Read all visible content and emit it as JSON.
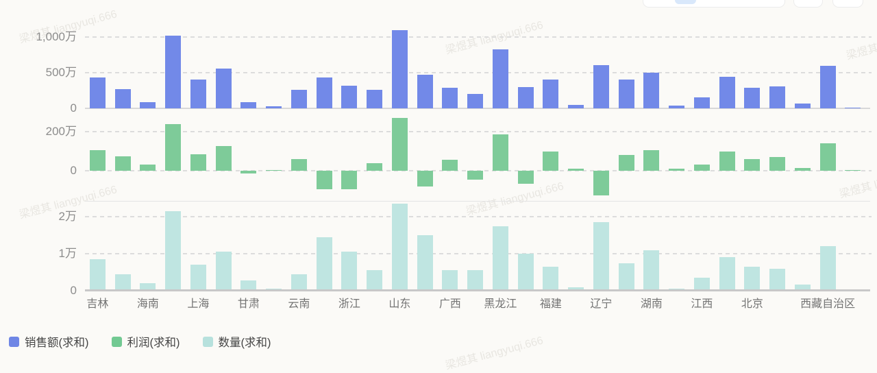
{
  "page": {
    "background": "#fbfaf7"
  },
  "colors": {
    "sales_bar": "#7289e8",
    "profit_bar": "#7ecb99",
    "qty_bar": "#bfe5e1",
    "gridline": "#dcdcdc",
    "y_tick_text": "#8c8c8c",
    "x_label_text": "#737373",
    "legend_text": "#454545",
    "top_axis_line": "#d8d8d8",
    "panel_separator": "#e4e4e4",
    "bottom_axis_line": "#c8c8c8",
    "toolbar_border": "#ececec",
    "toolbar_active_pill": "#d9e8fb"
  },
  "watermark": {
    "text": "梁煜其 liangyuqi.666"
  },
  "legend": {
    "items": [
      {
        "label": "销售额(求和)",
        "color": "#6f86e5"
      },
      {
        "label": "利润(求和)",
        "color": "#72c992"
      },
      {
        "label": "数量(求和)",
        "color": "#b7e1dd"
      }
    ]
  },
  "chart_data": {
    "type": "bar",
    "bar_count": 31,
    "note_layout": "three stacked panels sharing one category axis; axis shows a label under every second bar",
    "x_labels": [
      {
        "label": "吉林",
        "bar": 0
      },
      {
        "label": "海南",
        "bar": 2
      },
      {
        "label": "上海",
        "bar": 4
      },
      {
        "label": "甘肃",
        "bar": 6
      },
      {
        "label": "云南",
        "bar": 8
      },
      {
        "label": "浙江",
        "bar": 10
      },
      {
        "label": "山东",
        "bar": 12
      },
      {
        "label": "广西",
        "bar": 14
      },
      {
        "label": "黑龙江",
        "bar": 16
      },
      {
        "label": "福建",
        "bar": 18
      },
      {
        "label": "辽宁",
        "bar": 20
      },
      {
        "label": "湖南",
        "bar": 22
      },
      {
        "label": "江西",
        "bar": 24
      },
      {
        "label": "北京",
        "bar": 26
      },
      {
        "label": "西藏自治区",
        "bar": 29
      }
    ],
    "panels": [
      {
        "name": "sales",
        "legend": "销售额(求和)",
        "unit": "万",
        "color": "#7289e8",
        "y_ticks": [
          {
            "label": "1,000万",
            "value": 1000
          },
          {
            "label": "500万",
            "value": 500
          },
          {
            "label": "0",
            "value": 0
          }
        ],
        "values": [
          430,
          270,
          90,
          1020,
          400,
          555,
          90,
          30,
          260,
          430,
          320,
          260,
          1100,
          470,
          290,
          200,
          830,
          300,
          400,
          50,
          610,
          400,
          500,
          40,
          150,
          440,
          290,
          310,
          70,
          600,
          10
        ]
      },
      {
        "name": "profit",
        "legend": "利润(求和)",
        "unit": "万",
        "color": "#7ecb99",
        "y_ticks": [
          {
            "label": "200万",
            "value": 200
          },
          {
            "label": "0",
            "value": 0
          }
        ],
        "values": [
          105,
          75,
          30,
          240,
          85,
          125,
          -15,
          5,
          60,
          -95,
          -95,
          40,
          270,
          -80,
          55,
          -45,
          185,
          -65,
          100,
          10,
          -125,
          80,
          105,
          10,
          30,
          100,
          60,
          70,
          15,
          140,
          2
        ]
      },
      {
        "name": "qty",
        "legend": "数量(求和)",
        "unit": "万",
        "color": "#bfe5e1",
        "y_ticks": [
          {
            "label": "2万",
            "value": 2
          },
          {
            "label": "1万",
            "value": 1
          },
          {
            "label": "0",
            "value": 0
          }
        ],
        "values": [
          0.85,
          0.45,
          0.2,
          2.15,
          0.7,
          1.05,
          0.28,
          0.05,
          0.45,
          1.45,
          1.05,
          0.55,
          2.35,
          1.5,
          0.55,
          0.55,
          1.75,
          1.0,
          0.65,
          0.1,
          1.85,
          0.75,
          1.1,
          0.05,
          0.35,
          0.9,
          0.65,
          0.6,
          0.17,
          1.2,
          0.04
        ]
      }
    ]
  }
}
